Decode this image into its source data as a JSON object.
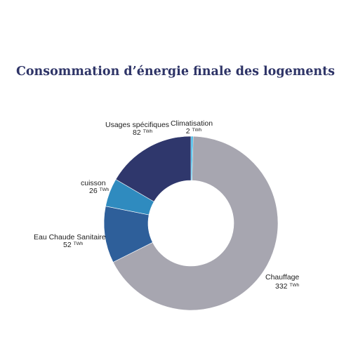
{
  "chart_data": {
    "type": "pie",
    "donut": true,
    "title": "Consommation d’énergie finale des logements",
    "unit": "TWh",
    "categories": [
      "Climatisation",
      "Chauffage",
      "Eau Chaude Sanitaire",
      "cuisson",
      "Usages spécifiques"
    ],
    "values": [
      2,
      332,
      52,
      26,
      82
    ],
    "value_labels": [
      "2",
      "332",
      "52",
      "26",
      "82"
    ],
    "colors": [
      "#2bb3e6",
      "#a7a6b0",
      "#2e5f9a",
      "#2f8bbf",
      "#2f376c"
    ],
    "legend": "none"
  }
}
